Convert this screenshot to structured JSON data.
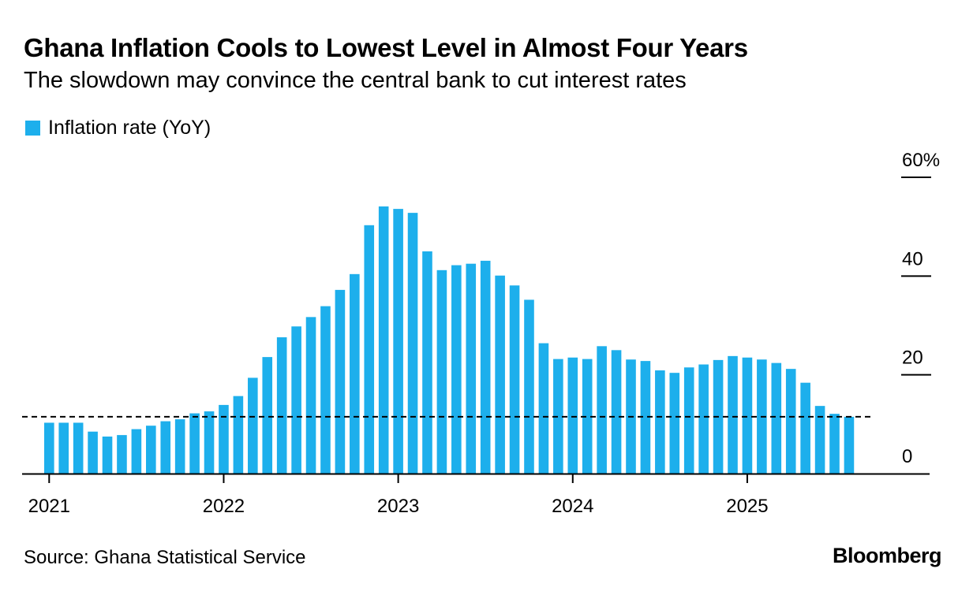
{
  "title": "Ghana Inflation Cools to Lowest Level in Almost Four Years",
  "subtitle": "The slowdown may convince the central bank to cut interest rates",
  "source": "Source: Ghana Statistical Service",
  "brand": "Bloomberg",
  "colors": {
    "bar": "#1dafec",
    "axis": "#000000",
    "reference_line": "#000000"
  },
  "chart_data": {
    "type": "bar",
    "legend": [
      "Inflation rate (YoY)"
    ],
    "legend_position": "top-left",
    "grid": false,
    "y_axis_side": "right",
    "ylim": [
      0,
      60
    ],
    "y_ticks": [
      {
        "value": 0,
        "label": "0"
      },
      {
        "value": 20,
        "label": "20"
      },
      {
        "value": 40,
        "label": "40"
      },
      {
        "value": 60,
        "label": "60%"
      }
    ],
    "x_ticks": [
      "2021",
      "2022",
      "2023",
      "2024",
      "2025"
    ],
    "reference_line": {
      "value": 11.5,
      "style": "dashed"
    },
    "series": [
      {
        "name": "Inflation rate (YoY)",
        "x": [
          "2021-01",
          "2021-02",
          "2021-03",
          "2021-04",
          "2021-05",
          "2021-06",
          "2021-07",
          "2021-08",
          "2021-09",
          "2021-10",
          "2021-11",
          "2021-12",
          "2022-01",
          "2022-02",
          "2022-03",
          "2022-04",
          "2022-05",
          "2022-06",
          "2022-07",
          "2022-08",
          "2022-09",
          "2022-10",
          "2022-11",
          "2022-12",
          "2023-01",
          "2023-02",
          "2023-03",
          "2023-04",
          "2023-05",
          "2023-06",
          "2023-07",
          "2023-08",
          "2023-09",
          "2023-10",
          "2023-11",
          "2023-12",
          "2024-01",
          "2024-02",
          "2024-03",
          "2024-04",
          "2024-05",
          "2024-06",
          "2024-07",
          "2024-08",
          "2024-09",
          "2024-10",
          "2024-11",
          "2024-12",
          "2025-01",
          "2025-02",
          "2025-03",
          "2025-04",
          "2025-05",
          "2025-06",
          "2025-07",
          "2025-08"
        ],
        "values": [
          10.3,
          10.3,
          10.3,
          8.5,
          7.5,
          7.8,
          9.0,
          9.7,
          10.6,
          11.0,
          12.2,
          12.6,
          13.9,
          15.7,
          19.4,
          23.6,
          27.6,
          29.8,
          31.7,
          33.9,
          37.2,
          40.4,
          50.3,
          54.1,
          53.6,
          52.8,
          45.0,
          41.2,
          42.2,
          42.5,
          43.1,
          40.1,
          38.1,
          35.2,
          26.4,
          23.2,
          23.5,
          23.2,
          25.8,
          25.0,
          23.1,
          22.8,
          20.9,
          20.4,
          21.5,
          22.1,
          23.0,
          23.8,
          23.5,
          23.1,
          22.4,
          21.2,
          18.4,
          13.7,
          12.1,
          11.5
        ]
      }
    ]
  }
}
